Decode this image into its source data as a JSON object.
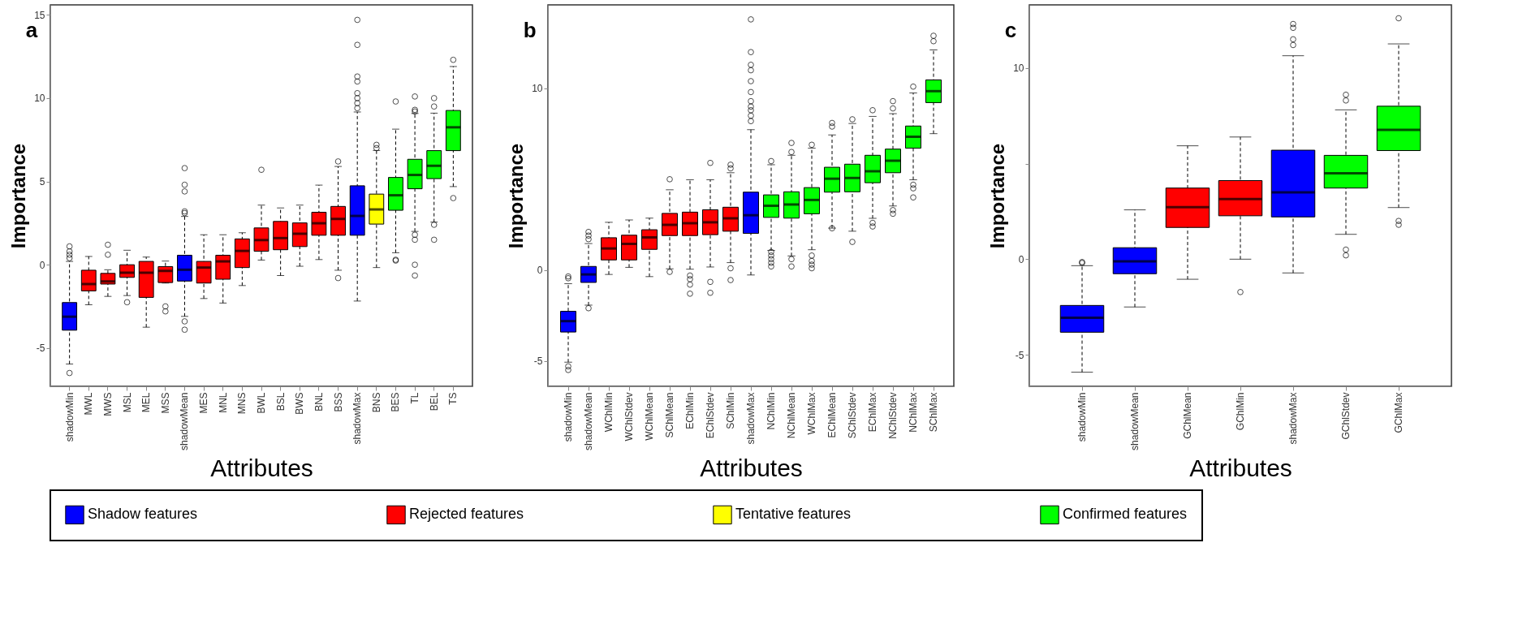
{
  "chart_data": [
    {
      "type": "box",
      "title": "a",
      "xlabel": "Attributes",
      "ylabel": "Importance",
      "legend": "bottom",
      "ylim": [
        -7.3,
        15.6
      ],
      "yticks": [
        -5,
        0,
        5,
        10,
        15
      ],
      "categories": [
        "shadowMin",
        "MWL",
        "MWS",
        "MSL",
        "MEL",
        "MSS",
        "shadowMean",
        "MES",
        "MNL",
        "MNS",
        "BWL",
        "BSL",
        "BWS",
        "BNL",
        "BSS",
        "shadowMax",
        "BNS",
        "BES",
        "TL",
        "BEL",
        "TS"
      ],
      "series": [
        {
          "name": "Shadow features",
          "color": "#0000ff",
          "boxes": [
            {
              "low": -5.96,
              "q1": -3.93,
              "median": -3.12,
              "q3": -2.27,
              "high": 0.2,
              "outliers": [
                0.4,
                0.6,
                0.8,
                1.1,
                -6.5
              ]
            },
            null,
            null,
            null,
            null,
            null,
            {
              "low": -3.1,
              "q1": -0.98,
              "median": -0.3,
              "q3": 0.57,
              "high": 2.9,
              "outliers": [
                3.1,
                3.2,
                4.4,
                4.8,
                5.8,
                -3.4,
                -3.9
              ]
            },
            null,
            null,
            null,
            null,
            null,
            null,
            null,
            null,
            {
              "low": -2.18,
              "q1": 1.77,
              "median": 2.93,
              "q3": 4.74,
              "high": 9.17,
              "outliers": [
                9.4,
                9.7,
                10,
                10.3,
                11,
                11.3,
                13.2,
                14.7
              ]
            },
            null,
            null,
            null,
            null,
            null
          ]
        },
        {
          "name": "Rejected features",
          "color": "#ff0000",
          "boxes": [
            null,
            {
              "low": -2.4,
              "q1": -1.57,
              "median": -1.16,
              "q3": -0.33,
              "high": 0.5
            },
            {
              "low": -1.9,
              "q1": -1.16,
              "median": -1.0,
              "q3": -0.52,
              "high": -0.3,
              "outliers": [
                0.6,
                1.2
              ]
            },
            {
              "low": -1.85,
              "q1": -0.76,
              "median": -0.48,
              "q3": 0,
              "high": 0.87,
              "outliers": [
                -2.25
              ]
            },
            {
              "low": -3.75,
              "q1": -1.96,
              "median": -0.48,
              "q3": 0.2,
              "high": 0.46
            },
            {
              "low": -1.1,
              "q1": -1.07,
              "median": -0.37,
              "q3": -0.11,
              "high": 0.22,
              "outliers": [
                -2.5,
                -2.8
              ]
            },
            null,
            {
              "low": -2.03,
              "q1": -1.1,
              "median": -0.17,
              "q3": 0.2,
              "high": 1.8
            },
            {
              "low": -2.3,
              "q1": -0.87,
              "median": 0.2,
              "q3": 0.57,
              "high": 1.8
            },
            {
              "low": -1.25,
              "q1": -0.17,
              "median": 0.83,
              "q3": 1.55,
              "high": 1.92
            },
            {
              "low": 0.28,
              "q1": 0.81,
              "median": 1.48,
              "q3": 2.21,
              "high": 3.58,
              "outliers": [
                5.7
              ]
            },
            {
              "low": -0.65,
              "q1": 0.9,
              "median": 1.6,
              "q3": 2.6,
              "high": 3.41
            },
            {
              "low": -0.09,
              "q1": 1.09,
              "median": 1.86,
              "q3": 2.51,
              "high": 3.58
            },
            {
              "low": 0.31,
              "q1": 1.77,
              "median": 2.49,
              "q3": 3.15,
              "high": 4.78
            },
            {
              "low": -0.33,
              "q1": 1.77,
              "median": 2.75,
              "q3": 3.5,
              "high": 5.9,
              "outliers": [
                6.2,
                -0.8
              ]
            },
            null,
            null,
            null,
            null,
            null,
            null
          ]
        },
        {
          "name": "Tentative features",
          "color": "#ffff00",
          "boxes": [
            null,
            null,
            null,
            null,
            null,
            null,
            null,
            null,
            null,
            null,
            null,
            null,
            null,
            null,
            null,
            null,
            {
              "low": -0.17,
              "q1": 2.44,
              "median": 3.32,
              "q3": 4.24,
              "high": 6.86,
              "outliers": [
                7.0,
                7.2
              ]
            },
            null,
            null,
            null,
            null
          ]
        },
        {
          "name": "Confirmed features",
          "color": "#00ff00",
          "boxes": [
            null,
            null,
            null,
            null,
            null,
            null,
            null,
            null,
            null,
            null,
            null,
            null,
            null,
            null,
            null,
            null,
            null,
            {
              "low": 0.72,
              "q1": 3.27,
              "median": 4.17,
              "q3": 5.24,
              "high": 8.14,
              "outliers": [
                0.25,
                0.3,
                9.8
              ]
            },
            {
              "low": 2.0,
              "q1": 4.56,
              "median": 5.39,
              "q3": 6.33,
              "high": 9.08,
              "outliers": [
                9.2,
                9.3,
                10.1,
                1.8,
                1.5,
                0,
                -0.65
              ]
            },
            {
              "low": 2.56,
              "q1": 5.17,
              "median": 5.94,
              "q3": 6.85,
              "high": 9.1,
              "outliers": [
                9.5,
                10,
                2.4,
                1.5
              ]
            },
            {
              "low": 4.69,
              "q1": 6.85,
              "median": 8.25,
              "q3": 9.26,
              "high": 11.9,
              "outliers": [
                12.3,
                4.0
              ]
            }
          ]
        }
      ]
    },
    {
      "type": "box",
      "title": "b",
      "xlabel": "Attributes",
      "ylabel": "Importance",
      "legend": "bottom",
      "ylim": [
        -6.4,
        14.6
      ],
      "yticks": [
        -5,
        0,
        10
      ],
      "categories": [
        "shadowMin",
        "shadowMean",
        "WChlMin",
        "WChlStdev",
        "WChlMean",
        "SChlMean",
        "EChlMin",
        "EChlStdev",
        "SChlMin",
        "shadowMax",
        "NChlMin",
        "NChlMean",
        "WChlMax",
        "EChlMean",
        "SChlStdev",
        "EChlMax",
        "NChlStdev",
        "NChlMax",
        "SChlMax"
      ],
      "series": [
        {
          "name": "Shadow features",
          "color": "#0000ff",
          "boxes": [
            {
              "low": -5.07,
              "q1": -3.41,
              "median": -2.81,
              "q3": -2.27,
              "high": -0.75,
              "outliers": [
                -0.35,
                -0.45,
                -5.3,
                -5.5
              ]
            },
            {
              "low": -1.93,
              "q1": -0.68,
              "median": -0.24,
              "q3": 0.2,
              "high": 1.46,
              "outliers": [
                1.7,
                1.9,
                2.1,
                -2.1
              ]
            },
            null,
            null,
            null,
            null,
            null,
            null,
            null,
            {
              "low": -0.27,
              "q1": 2.02,
              "median": 3.02,
              "q3": 4.29,
              "high": 7.73,
              "outliers": [
                8.2,
                8.5,
                8.8,
                9,
                9.3,
                9.8,
                10.4,
                11.0,
                11.3,
                12.0,
                13.8
              ]
            },
            null,
            null,
            null,
            null,
            null,
            null,
            null,
            null,
            null
          ]
        },
        {
          "name": "Rejected features",
          "color": "#ff0000",
          "boxes": [
            null,
            null,
            {
              "low": -0.24,
              "q1": 0.56,
              "median": 1.19,
              "q3": 1.78,
              "high": 2.63
            },
            {
              "low": 0.15,
              "q1": 0.56,
              "median": 1.44,
              "q3": 1.92,
              "high": 2.76
            },
            {
              "low": -0.36,
              "q1": 1.14,
              "median": 1.8,
              "q3": 2.22,
              "high": 2.86
            },
            {
              "low": 0.07,
              "q1": 1.9,
              "median": 2.49,
              "q3": 3.12,
              "high": 4.42,
              "outliers": [
                5.0,
                -0.1
              ]
            },
            {
              "low": 0.05,
              "q1": 1.9,
              "median": 2.58,
              "q3": 3.19,
              "high": 4.97,
              "outliers": [
                -0.3,
                -0.5,
                -0.8,
                -1.3
              ]
            },
            {
              "low": 0.17,
              "q1": 1.95,
              "median": 2.63,
              "q3": 3.32,
              "high": 4.97,
              "outliers": [
                5.9,
                -0.65,
                -1.25
              ]
            },
            {
              "low": 0.41,
              "q1": 2.14,
              "median": 2.85,
              "q3": 3.46,
              "high": 5.36,
              "outliers": [
                5.6,
                5.8,
                0.1,
                -0.55
              ]
            },
            null,
            null,
            null,
            null,
            null,
            null,
            null,
            null,
            null,
            null
          ]
        },
        {
          "name": "Confirmed features",
          "color": "#00ff00",
          "boxes": [
            null,
            null,
            null,
            null,
            null,
            null,
            null,
            null,
            null,
            null,
            {
              "low": 1.08,
              "q1": 2.9,
              "median": 3.54,
              "q3": 4.14,
              "high": 5.8,
              "outliers": [
                6.0,
                1.0,
                0.8,
                0.6,
                0.4,
                0.2
              ]
            },
            {
              "low": 0.78,
              "q1": 2.86,
              "median": 3.61,
              "q3": 4.31,
              "high": 6.32,
              "outliers": [
                6.5,
                7.0,
                0.6,
                0.2
              ]
            },
            {
              "low": 1.12,
              "q1": 3.1,
              "median": 3.86,
              "q3": 4.54,
              "high": 6.71,
              "outliers": [
                6.9,
                0.8,
                0.5,
                0.3,
                0.1
              ]
            },
            {
              "low": 2.31,
              "q1": 4.29,
              "median": 5.03,
              "q3": 5.66,
              "high": 7.44,
              "outliers": [
                7.9,
                8.1,
                2.3
              ]
            },
            {
              "low": 2.14,
              "q1": 4.31,
              "median": 5.07,
              "q3": 5.83,
              "high": 8.07,
              "outliers": [
                8.3,
                1.55
              ]
            },
            {
              "low": 2.85,
              "q1": 4.81,
              "median": 5.44,
              "q3": 6.32,
              "high": 8.46,
              "outliers": [
                8.8,
                2.4,
                2.6
              ]
            },
            {
              "low": 3.53,
              "q1": 5.36,
              "median": 6.02,
              "q3": 6.66,
              "high": 8.61,
              "outliers": [
                8.9,
                9.3,
                3.1,
                3.3
              ]
            },
            {
              "low": 4.97,
              "q1": 6.71,
              "median": 7.34,
              "q3": 7.93,
              "high": 9.75,
              "outliers": [
                10.1,
                4.5,
                4.7,
                4.0
              ]
            },
            {
              "low": 7.51,
              "q1": 9.22,
              "median": 9.85,
              "q3": 10.47,
              "high": 12.12,
              "outliers": [
                12.6,
                12.9
              ]
            }
          ]
        }
      ]
    },
    {
      "type": "box",
      "title": "c",
      "xlabel": "Attributes",
      "ylabel": "Importance",
      "legend": "bottom",
      "ylim": [
        -6.65,
        13.3
      ],
      "yticks": [
        -5,
        0,
        {
          "value": 5,
          "label": null
        },
        10
      ],
      "categories": [
        "shadowMin",
        "shadowMean",
        "GChlMean",
        "GChlMin",
        "shadowMax",
        "GChlStdev",
        "GChlMax"
      ],
      "series": [
        {
          "name": "Shadow features",
          "color": "#0000ff",
          "boxes": [
            {
              "low": -5.91,
              "q1": -3.82,
              "median": -3.06,
              "q3": -2.42,
              "high": -0.34,
              "outliers": [
                -0.2,
                -0.15
              ]
            },
            {
              "low": -2.5,
              "q1": -0.76,
              "median": -0.11,
              "q3": 0.6,
              "high": 2.58
            },
            null,
            null,
            {
              "low": -0.72,
              "q1": 2.21,
              "median": 3.49,
              "q3": 5.7,
              "high": 10.64,
              "outliers": [
                11.2,
                11.5,
                12.1,
                12.3
              ]
            },
            null,
            null
          ]
        },
        {
          "name": "Rejected features",
          "color": "#ff0000",
          "boxes": [
            null,
            null,
            {
              "low": -1.05,
              "q1": 1.66,
              "median": 2.72,
              "q3": 3.72,
              "high": 5.93
            },
            {
              "low": 0,
              "q1": 2.27,
              "median": 3.14,
              "q3": 4.11,
              "high": 6.39,
              "outliers": [
                -1.72
              ]
            },
            null,
            null,
            null
          ]
        },
        {
          "name": "Confirmed features",
          "color": "#00ff00",
          "boxes": [
            null,
            null,
            null,
            null,
            null,
            {
              "low": 1.3,
              "q1": 3.72,
              "median": 4.49,
              "q3": 5.43,
              "high": 7.81,
              "outliers": [
                8.3,
                8.6,
                0.2,
                0.5
              ]
            },
            {
              "low": 2.7,
              "q1": 5.68,
              "median": 6.76,
              "q3": 8.0,
              "high": 11.26,
              "outliers": [
                2.0,
                1.8,
                12.6
              ]
            }
          ]
        }
      ]
    }
  ]
}
